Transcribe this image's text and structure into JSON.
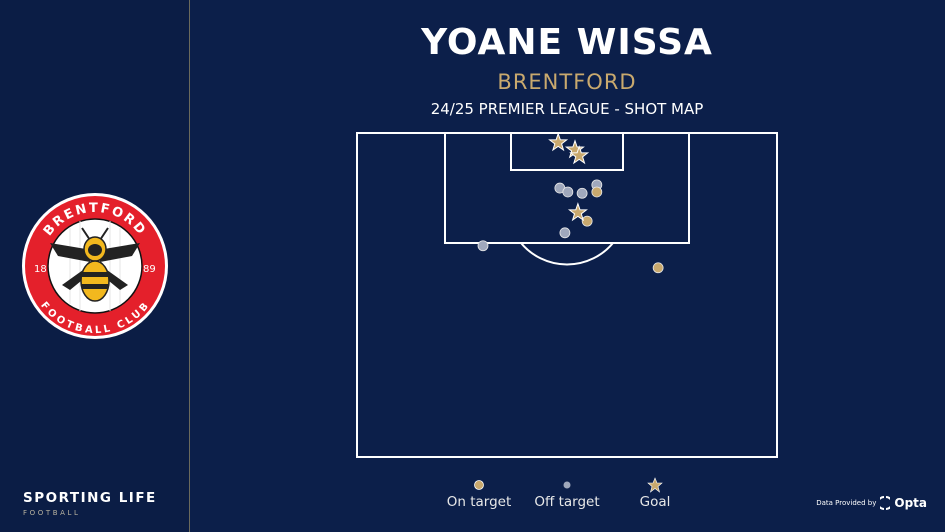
{
  "header": {
    "player": "YOANE WISSA",
    "club": "BRENTFORD",
    "subtitle": "24/25 PREMIER LEAGUE - SHOT MAP"
  },
  "crest": {
    "top_text": "BRENTFORD",
    "bottom_text": "FOOTBALL CLUB",
    "year_left": "18",
    "year_right": "89"
  },
  "brand": {
    "main": "SPORTING LIFE",
    "sub": "FOOTBALL"
  },
  "legend": [
    {
      "label": "On target",
      "type": "on_target"
    },
    {
      "label": "Off target",
      "type": "off_target"
    },
    {
      "label": "Goal",
      "type": "goal"
    }
  ],
  "credit": {
    "text": "Data Provided by",
    "provider": "Opta"
  },
  "colors": {
    "background": "#0c1f4a",
    "gold": "#c9a96e",
    "off_target": "#a0a8bc",
    "crest_red": "#e4202b"
  },
  "chart_data": {
    "type": "scatter",
    "coordinate_system": "Opta (x: 0-100 towards goal, y: 0-100 across)",
    "shots": [
      {
        "x": 98.5,
        "y": 47.9,
        "type": "goal"
      },
      {
        "x": 97.4,
        "y": 51.9,
        "type": "goal"
      },
      {
        "x": 96.5,
        "y": 52.9,
        "type": "goal"
      },
      {
        "x": 87.7,
        "y": 52.6,
        "type": "goal"
      },
      {
        "x": 90.9,
        "y": 57.1,
        "type": "on_target"
      },
      {
        "x": 86.4,
        "y": 54.8,
        "type": "on_target"
      },
      {
        "x": 79.2,
        "y": 71.7,
        "type": "on_target"
      },
      {
        "x": 91.5,
        "y": 48.3,
        "type": "off_target"
      },
      {
        "x": 90.9,
        "y": 50.2,
        "type": "off_target"
      },
      {
        "x": 90.7,
        "y": 53.6,
        "type": "off_target"
      },
      {
        "x": 92.0,
        "y": 57.1,
        "type": "off_target"
      },
      {
        "x": 84.6,
        "y": 49.5,
        "type": "off_target"
      },
      {
        "x": 82.6,
        "y": 30.0,
        "type": "off_target"
      }
    ]
  }
}
